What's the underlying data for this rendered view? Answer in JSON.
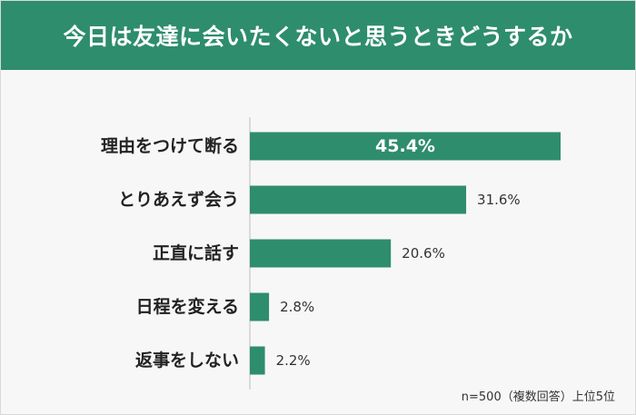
{
  "header": {
    "title": "今日は友達に会いたくないと思うときどうするか"
  },
  "chart_data": {
    "type": "bar",
    "orientation": "horizontal",
    "categories": [
      "理由をつけて断る",
      "とりあえず会う",
      "正直に話す",
      "日程を変える",
      "返事をしない"
    ],
    "values": [
      45.4,
      31.6,
      20.6,
      2.8,
      2.2
    ],
    "value_labels": [
      "45.4%",
      "31.6%",
      "20.6%",
      "2.8%",
      "2.2%"
    ],
    "unit": "%",
    "xlim": [
      0,
      50
    ],
    "grid": false,
    "bar_color": "#2e8d6c"
  },
  "footnote": "n=500（複数回答）上位5位"
}
